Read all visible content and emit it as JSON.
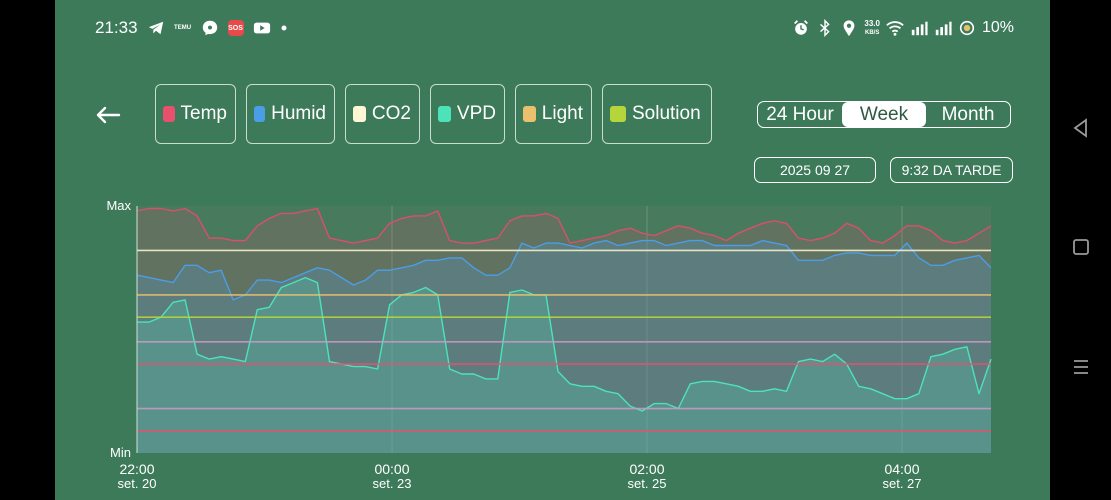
{
  "status_bar": {
    "time": "21:33",
    "left_icons": [
      "telegram-icon",
      "temu-icon",
      "messenger-icon",
      "sos-icon",
      "youtube-icon",
      "dot-icon"
    ],
    "temu_text": "TEMU",
    "sos_text": "SOS",
    "network_speed": "33.0",
    "network_speed_unit": "KB/S",
    "battery": "10%",
    "right_icons": [
      "alarm-icon",
      "bluetooth-icon",
      "location-icon",
      "wifi-icon",
      "signal-icon",
      "signal-icon",
      "battery-saver-icon"
    ]
  },
  "header": {
    "back_icon": "arrow-left-icon",
    "metrics": [
      {
        "label": "Temp",
        "color": "#e8506e"
      },
      {
        "label": "Humid",
        "color": "#4a9ee6"
      },
      {
        "label": "CO2",
        "color": "#fdf7d6"
      },
      {
        "label": "VPD",
        "color": "#4de3b8"
      },
      {
        "label": "Light",
        "color": "#e8c06e"
      },
      {
        "label": "Solution",
        "color": "#b5d63a"
      }
    ],
    "range_options": [
      "24 Hour",
      "Week",
      "Month"
    ],
    "selected_range": "Week",
    "date": "2025 09 27",
    "time": "9:32 DA TARDE"
  },
  "chart_data": {
    "type": "line",
    "y_top_label": "Max",
    "y_bottom_label": "Min",
    "x_ticks": [
      {
        "time": "22:00",
        "date": "set. 20"
      },
      {
        "time": "00:00",
        "date": "set. 23"
      },
      {
        "time": "02:00",
        "date": "set. 25"
      },
      {
        "time": "04:00",
        "date": "set. 27"
      }
    ],
    "grid": true,
    "series": [
      {
        "color": "#d9506a",
        "values": [
          0.98,
          0.99,
          0.99,
          0.98,
          0.99,
          0.96,
          0.87,
          0.87,
          0.86,
          0.86,
          0.92,
          0.95,
          0.97,
          0.97,
          0.98,
          0.99,
          0.87,
          0.86,
          0.85,
          0.86,
          0.87,
          0.93,
          0.95,
          0.96,
          0.96,
          0.98,
          0.86,
          0.85,
          0.85,
          0.86,
          0.87,
          0.94,
          0.96,
          0.96,
          0.97,
          0.95,
          0.85,
          0.86,
          0.87,
          0.88,
          0.9,
          0.91,
          0.89,
          0.88,
          0.9,
          0.92,
          0.91,
          0.89,
          0.88,
          0.86,
          0.89,
          0.91,
          0.93,
          0.94,
          0.93,
          0.87,
          0.86,
          0.87,
          0.89,
          0.93,
          0.91,
          0.86,
          0.85,
          0.88,
          0.92,
          0.92,
          0.9,
          0.86,
          0.85,
          0.86,
          0.89,
          0.92
        ]
      },
      {
        "color": "#4a9ee6",
        "values": [
          0.72,
          0.71,
          0.7,
          0.69,
          0.76,
          0.76,
          0.73,
          0.74,
          0.62,
          0.64,
          0.7,
          0.7,
          0.69,
          0.71,
          0.73,
          0.75,
          0.74,
          0.71,
          0.68,
          0.7,
          0.74,
          0.74,
          0.75,
          0.76,
          0.78,
          0.78,
          0.79,
          0.79,
          0.75,
          0.72,
          0.72,
          0.75,
          0.85,
          0.83,
          0.85,
          0.85,
          0.84,
          0.83,
          0.85,
          0.86,
          0.84,
          0.85,
          0.86,
          0.86,
          0.84,
          0.85,
          0.86,
          0.86,
          0.84,
          0.84,
          0.84,
          0.84,
          0.86,
          0.85,
          0.84,
          0.78,
          0.78,
          0.78,
          0.8,
          0.81,
          0.81,
          0.8,
          0.8,
          0.8,
          0.85,
          0.79,
          0.76,
          0.76,
          0.78,
          0.79,
          0.8,
          0.75
        ]
      },
      {
        "color": "#4de3b8",
        "values": [
          0.53,
          0.53,
          0.55,
          0.61,
          0.62,
          0.4,
          0.38,
          0.39,
          0.38,
          0.37,
          0.58,
          0.59,
          0.67,
          0.69,
          0.71,
          0.69,
          0.37,
          0.36,
          0.35,
          0.35,
          0.34,
          0.6,
          0.64,
          0.65,
          0.67,
          0.64,
          0.34,
          0.32,
          0.32,
          0.3,
          0.3,
          0.65,
          0.66,
          0.64,
          0.64,
          0.33,
          0.28,
          0.27,
          0.27,
          0.25,
          0.24,
          0.19,
          0.17,
          0.2,
          0.2,
          0.18,
          0.28,
          0.29,
          0.29,
          0.28,
          0.27,
          0.25,
          0.25,
          0.26,
          0.25,
          0.37,
          0.38,
          0.37,
          0.4,
          0.36,
          0.27,
          0.26,
          0.24,
          0.22,
          0.22,
          0.24,
          0.39,
          0.4,
          0.42,
          0.43,
          0.24,
          0.38
        ]
      }
    ],
    "threshold_lines": [
      {
        "color": "#f5f0c8",
        "value": 0.82
      },
      {
        "color": "#e8c06e",
        "value": 0.64
      },
      {
        "color": "#b5d63a",
        "value": 0.55
      },
      {
        "color": "#c79ac2",
        "value": 0.45
      },
      {
        "color": "#e8506e",
        "value": 0.36
      },
      {
        "color": "#c79ac2",
        "value": 0.18
      },
      {
        "color": "#e8506e",
        "value": 0.09
      }
    ]
  }
}
